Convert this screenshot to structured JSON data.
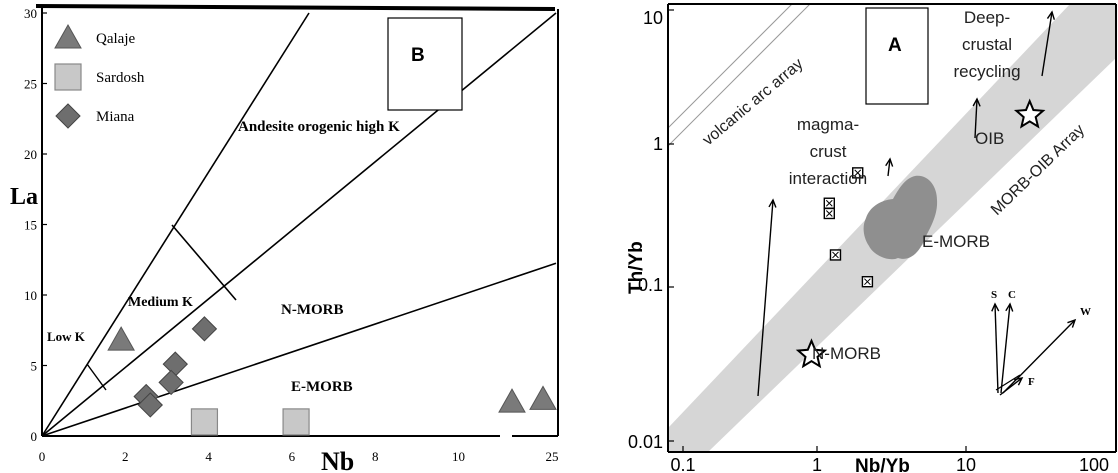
{
  "chart_data": [
    {
      "panel_label": "B",
      "type": "scatter",
      "xlabel": "Nb",
      "ylabel": "La",
      "xlim": [
        0,
        25
      ],
      "ylim": [
        0,
        30
      ],
      "xticks": [
        0,
        2,
        4,
        6,
        8,
        10,
        25
      ],
      "yticks": [
        0,
        5,
        10,
        15,
        20,
        25,
        30
      ],
      "fields": [
        {
          "label": "Andesite orogenic high K",
          "slope": 4.68
        },
        {
          "label": "Medium K",
          "slope": 2.33
        },
        {
          "label": "N-MORB"
        },
        {
          "label": "E-MORB",
          "slope": 0.49
        },
        {
          "label": "Low K"
        }
      ],
      "legend_position": "top-left",
      "series": [
        {
          "name": "Qalaje",
          "marker": "triangle",
          "color": "#7a7a7a",
          "points": [
            {
              "x": 1.9,
              "y": 6.8
            },
            {
              "x": 11.6,
              "y": 2.4
            },
            {
              "x": 12.7,
              "y": 2.6
            }
          ]
        },
        {
          "name": "Sardosh",
          "marker": "square",
          "color": "#c8c8c8",
          "points": [
            {
              "x": 3.9,
              "y": 1.0
            },
            {
              "x": 6.1,
              "y": 1.0
            }
          ]
        },
        {
          "name": "Miana",
          "marker": "diamond",
          "color": "#6e6e6e",
          "points": [
            {
              "x": 3.9,
              "y": 7.6
            },
            {
              "x": 3.2,
              "y": 5.1
            },
            {
              "x": 3.1,
              "y": 3.8
            },
            {
              "x": 2.5,
              "y": 2.8
            },
            {
              "x": 2.6,
              "y": 2.2
            }
          ]
        }
      ]
    },
    {
      "panel_label": "A",
      "type": "scatter",
      "xscale": "log",
      "yscale": "log",
      "xlabel": "Nb/Yb",
      "ylabel": "Th/Yb",
      "xlim": [
        0.1,
        100
      ],
      "ylim": [
        0.01,
        10
      ],
      "xticks": [
        "0.1",
        "1",
        "10",
        "100"
      ],
      "yticks": [
        "0.01",
        "0.1",
        "1",
        "10"
      ],
      "bands": [
        {
          "label": "volcanic arc array"
        },
        {
          "label": "MORB-OIB Array"
        }
      ],
      "reference_points": [
        {
          "label": "N-MORB",
          "x": 0.76,
          "y": 0.04,
          "marker": "star"
        },
        {
          "label": "OIB",
          "x": 22,
          "y": 1.9,
          "marker": "star"
        },
        {
          "label": "E-MORB",
          "x": 3.5,
          "y": 0.3,
          "marker": "field"
        }
      ],
      "samples": [
        {
          "x": 1.55,
          "y": 0.75
        },
        {
          "x": 1.0,
          "y": 0.46
        },
        {
          "x": 1.0,
          "y": 0.39
        },
        {
          "x": 1.1,
          "y": 0.2
        },
        {
          "x": 1.8,
          "y": 0.13
        }
      ],
      "annotations": [
        "magma-\ncrust\ninteraction",
        "Deep-\ncrustal\nrecycling"
      ],
      "vector_labels": [
        "S",
        "C",
        "W",
        "F"
      ]
    }
  ]
}
